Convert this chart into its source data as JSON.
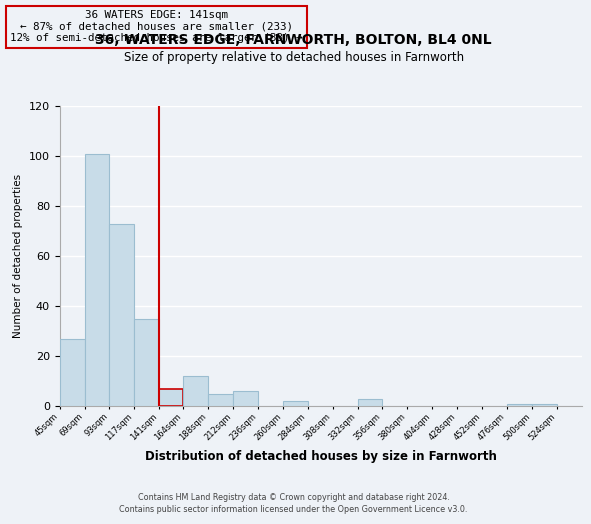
{
  "title": "36, WATERS EDGE, FARNWORTH, BOLTON, BL4 0NL",
  "subtitle": "Size of property relative to detached houses in Farnworth",
  "xlabel": "Distribution of detached houses by size in Farnworth",
  "ylabel": "Number of detached properties",
  "bar_edges": [
    45,
    69,
    93,
    117,
    141,
    164,
    188,
    212,
    236,
    260,
    284,
    308,
    332,
    356,
    380,
    404,
    428,
    452,
    476,
    500,
    524
  ],
  "bar_heights": [
    27,
    101,
    73,
    35,
    7,
    12,
    5,
    6,
    0,
    2,
    0,
    0,
    3,
    0,
    0,
    0,
    0,
    0,
    1,
    1,
    0
  ],
  "highlight_index": 4,
  "bar_color": "#c8dce8",
  "bar_edge_color": "#9bbdd0",
  "highlight_edge_color": "#cc0000",
  "annotation_title": "36 WATERS EDGE: 141sqm",
  "annotation_line1": "← 87% of detached houses are smaller (233)",
  "annotation_line2": "12% of semi-detached houses are larger (33) →",
  "annotation_box_edge": "#cc0000",
  "ylim": [
    0,
    120
  ],
  "yticks": [
    0,
    20,
    40,
    60,
    80,
    100,
    120
  ],
  "background_color": "#eef2f7",
  "grid_color": "#ffffff",
  "footer1": "Contains HM Land Registry data © Crown copyright and database right 2024.",
  "footer2": "Contains public sector information licensed under the Open Government Licence v3.0."
}
